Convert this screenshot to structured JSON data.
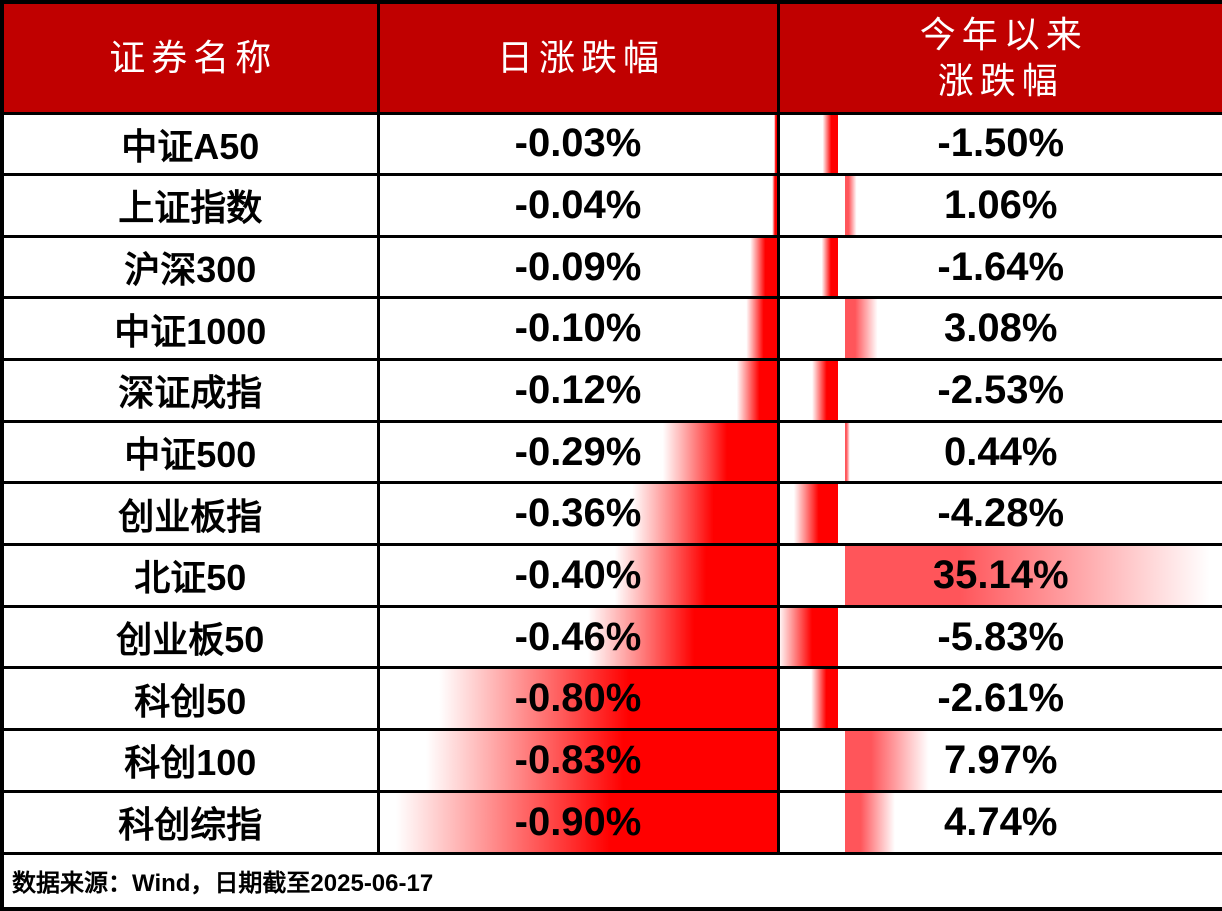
{
  "header": {
    "col_security": "证券名称",
    "col_daily": "日涨跌幅",
    "col_ytd_line1": "今年以来",
    "col_ytd_line2": "涨跌幅"
  },
  "footer": {
    "source_note": "数据来源：Wind，日期截至2025-06-17"
  },
  "colors": {
    "header_bg": "#C00000",
    "header_text": "#FFFFFF",
    "body_text": "#000000",
    "border": "#000000",
    "bar_negative": "#FF0000",
    "bar_positive": "#FF555A"
  },
  "chart_data": {
    "type": "table",
    "title": "",
    "columns": [
      "证券名称",
      "日涨跌幅",
      "今年以来涨跌幅"
    ],
    "categories": [
      "中证A50",
      "上证指数",
      "沪深300",
      "中证1000",
      "深证成指",
      "中证500",
      "创业板指",
      "北证50",
      "创业板50",
      "科创50",
      "科创100",
      "科创综指"
    ],
    "series": [
      {
        "name": "日涨跌幅(%)",
        "values": [
          -0.03,
          -0.04,
          -0.09,
          -0.1,
          -0.12,
          -0.29,
          -0.36,
          -0.4,
          -0.46,
          -0.8,
          -0.83,
          -0.9
        ]
      },
      {
        "name": "今年以来涨跌幅(%)",
        "values": [
          -1.5,
          1.06,
          -1.64,
          3.08,
          -2.53,
          0.44,
          -4.28,
          35.14,
          -5.83,
          -2.61,
          7.97,
          4.74
        ]
      }
    ],
    "rows": [
      {
        "name": "中证A50",
        "daily_label": "-0.03%",
        "daily": -0.03,
        "ytd_label": "-1.50%",
        "ytd": -1.5
      },
      {
        "name": "上证指数",
        "daily_label": "-0.04%",
        "daily": -0.04,
        "ytd_label": "1.06%",
        "ytd": 1.06
      },
      {
        "name": "沪深300",
        "daily_label": "-0.09%",
        "daily": -0.09,
        "ytd_label": "-1.64%",
        "ytd": -1.64
      },
      {
        "name": "中证1000",
        "daily_label": "-0.10%",
        "daily": -0.1,
        "ytd_label": "3.08%",
        "ytd": 3.08
      },
      {
        "name": "深证成指",
        "daily_label": "-0.12%",
        "daily": -0.12,
        "ytd_label": "-2.53%",
        "ytd": -2.53
      },
      {
        "name": "中证500",
        "daily_label": "-0.29%",
        "daily": -0.29,
        "ytd_label": "0.44%",
        "ytd": 0.44
      },
      {
        "name": "创业板指",
        "daily_label": "-0.36%",
        "daily": -0.36,
        "ytd_label": "-4.28%",
        "ytd": -4.28
      },
      {
        "name": "北证50",
        "daily_label": "-0.40%",
        "daily": -0.4,
        "ytd_label": "35.14%",
        "ytd": 35.14
      },
      {
        "name": "创业板50",
        "daily_label": "-0.46%",
        "daily": -0.46,
        "ytd_label": "-5.83%",
        "ytd": -5.83
      },
      {
        "name": "科创50",
        "daily_label": "-0.80%",
        "daily": -0.8,
        "ytd_label": "-2.61%",
        "ytd": -2.61
      },
      {
        "name": "科创100",
        "daily_label": "-0.83%",
        "daily": -0.83,
        "ytd_label": "7.97%",
        "ytd": 7.97
      },
      {
        "name": "科创综指",
        "daily_label": "-0.90%",
        "daily": -0.9,
        "ytd_label": "4.74%",
        "ytd": 4.74
      }
    ],
    "layout_hints": {
      "daily_bars": "all negative, axis at right edge of column, most negative (-0.90) spans full width, least negative (-0.03) minimal sliver",
      "ytd_bars": "axis at |min|/(max-min) = 14.23% of column width; negatives extend left of axis, positives right",
      "gradient": "solid color at axis end fading to white at bar tip"
    }
  }
}
